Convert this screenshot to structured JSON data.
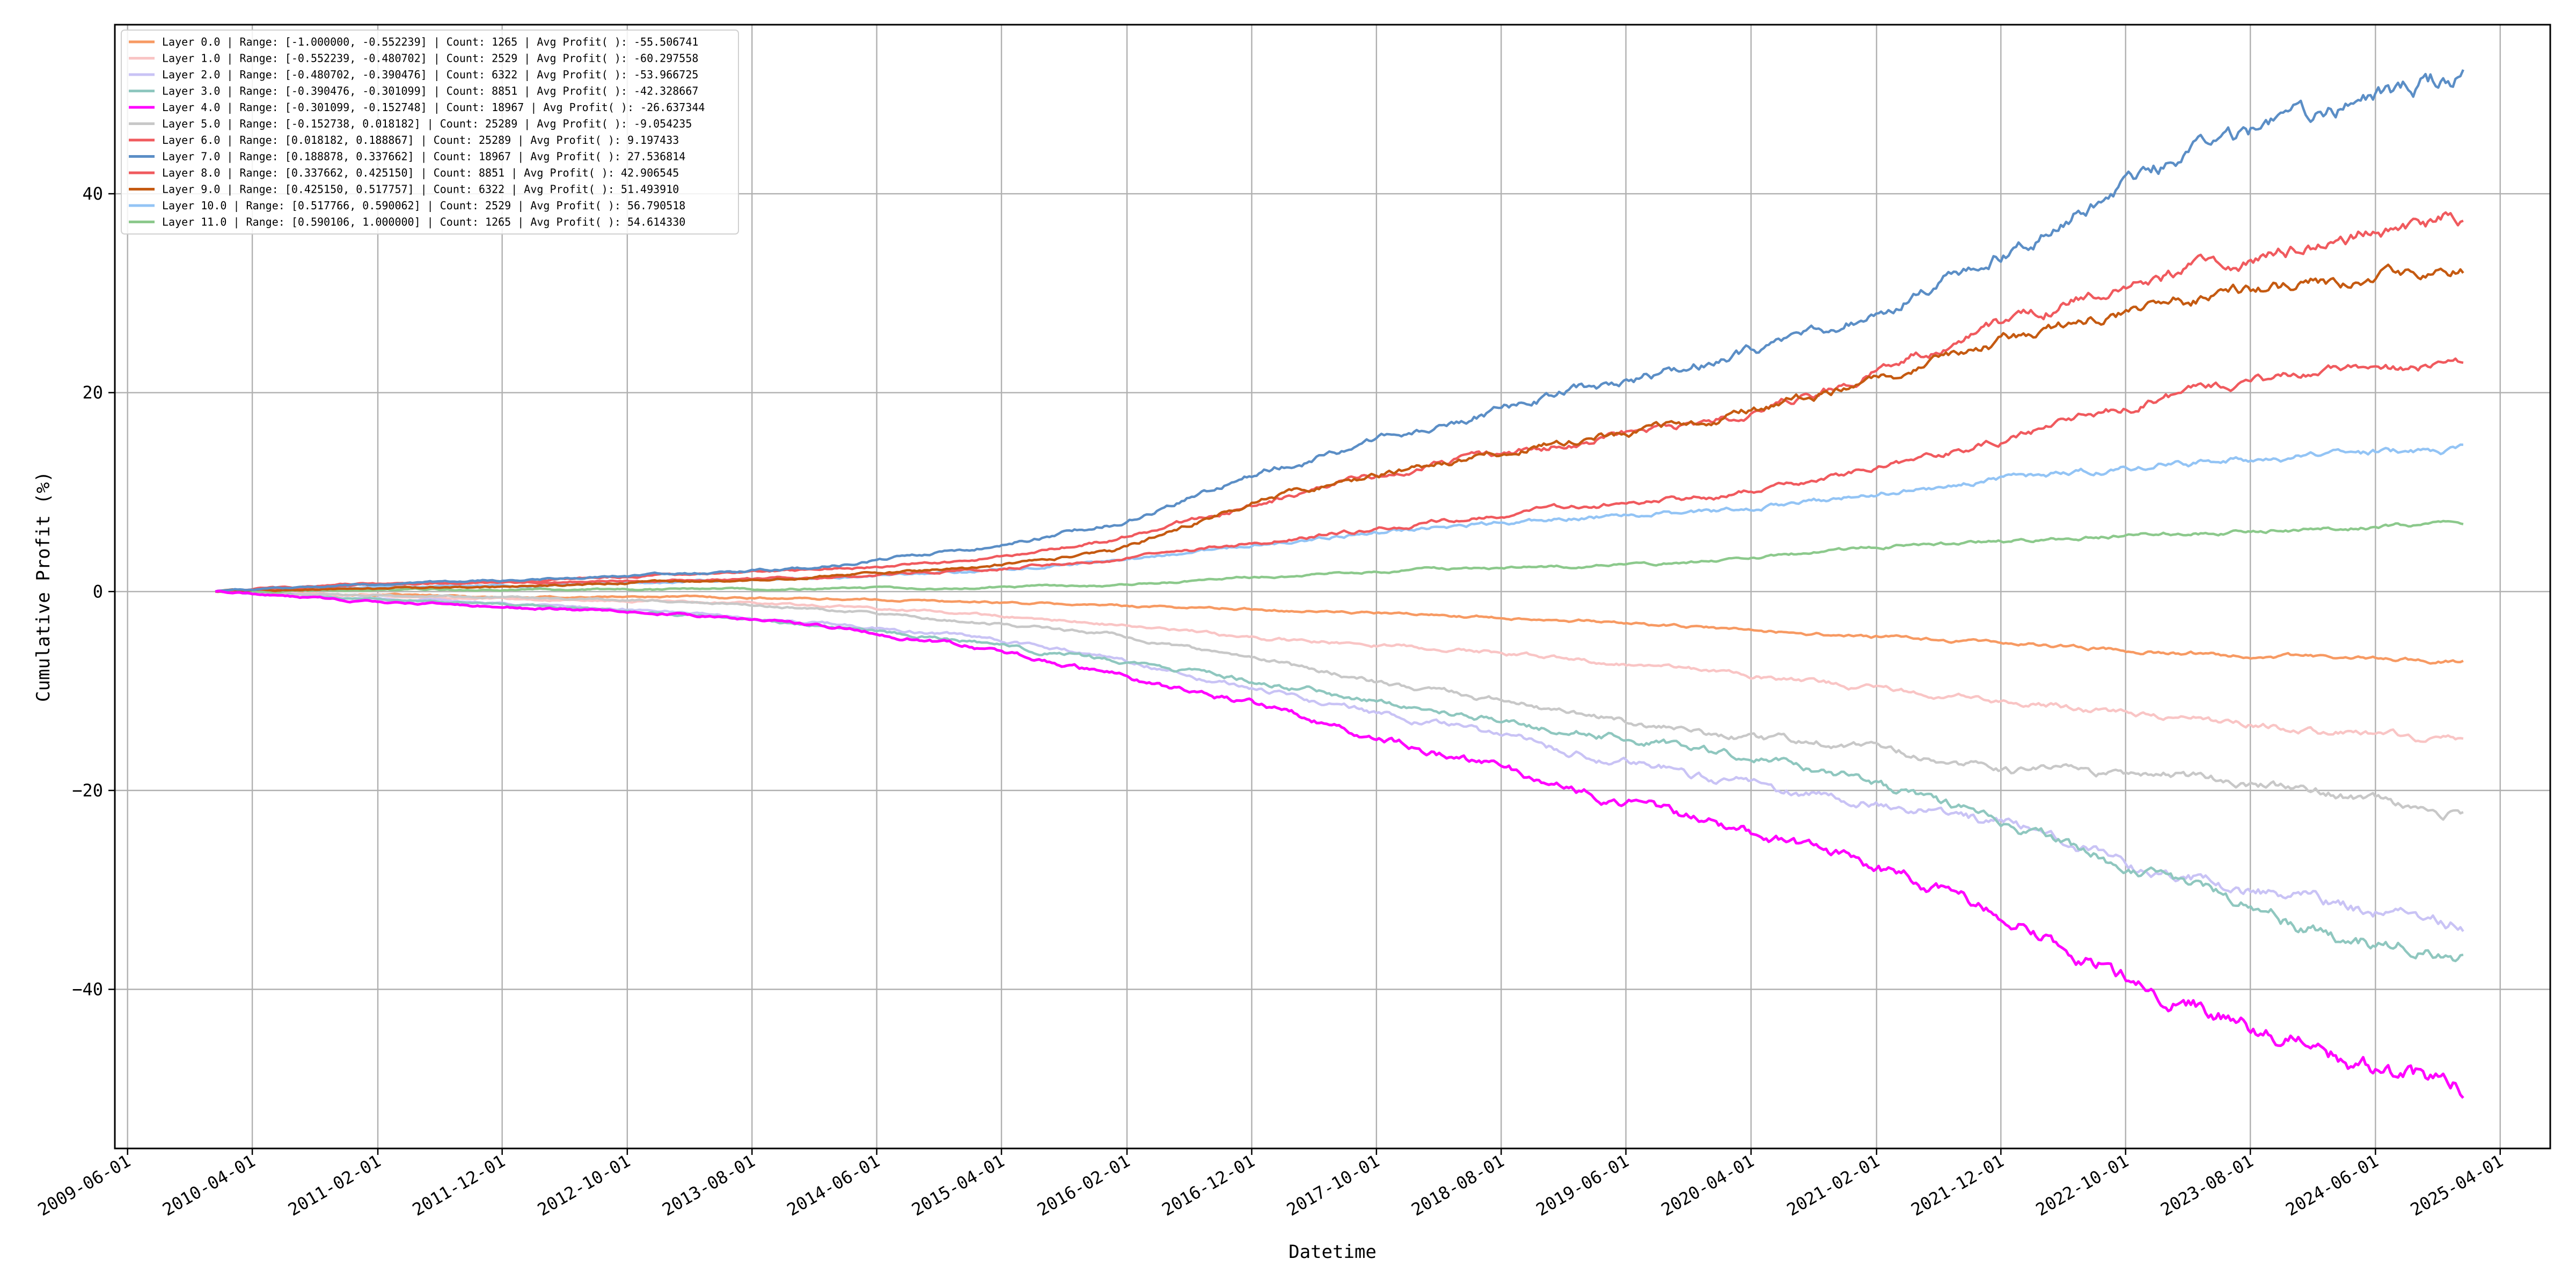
{
  "chart_data": {
    "type": "line",
    "title": "",
    "xlabel": "Datetime",
    "ylabel": "Cumulative Profit (%)",
    "x_tick_labels": [
      "2009-06-01",
      "2010-04-01",
      "2011-02-01",
      "2011-12-01",
      "2012-10-01",
      "2013-08-01",
      "2014-06-01",
      "2015-04-01",
      "2016-02-01",
      "2016-12-01",
      "2017-10-01",
      "2018-08-01",
      "2019-06-01",
      "2020-04-01",
      "2021-02-01",
      "2021-12-01",
      "2022-10-01",
      "2023-08-01",
      "2024-06-01",
      "2025-04-01"
    ],
    "y_ticks": [
      -40,
      -20,
      0,
      20,
      40
    ],
    "y_tick_labels": [
      "−40",
      "−20",
      "0",
      "20",
      "40"
    ],
    "xlim": [
      "2009-05-01",
      "2025-08-01"
    ],
    "ylim": [
      -56,
      57
    ],
    "grid": true,
    "legend_position": "top-left",
    "x": [
      "2010-01-01",
      "2011-01-01",
      "2012-01-01",
      "2013-01-01",
      "2014-01-01",
      "2015-01-01",
      "2016-01-01",
      "2017-01-01",
      "2018-01-01",
      "2019-01-01",
      "2020-01-01",
      "2021-01-01",
      "2022-01-01",
      "2023-01-01",
      "2024-01-01",
      "2025-01-01"
    ],
    "series": [
      {
        "name": "Layer 0.0 | Range: [-1.000000, -0.552239] | Count: 1265 | Avg Profit( ): -55.506741",
        "color": "#f79a63",
        "values": [
          0,
          -0.3,
          -0.6,
          -0.5,
          -0.7,
          -1.0,
          -1.4,
          -1.8,
          -2.3,
          -2.8,
          -3.7,
          -4.5,
          -5.2,
          -6.1,
          -6.6,
          -7.0
        ]
      },
      {
        "name": "Layer 1.0 | Range: [-0.552239, -0.480702] | Count: 2529 | Avg Profit( ): -60.297558",
        "color": "#f9c5c5",
        "values": [
          0,
          -0.3,
          -0.8,
          -1.0,
          -1.4,
          -2.2,
          -3.3,
          -4.8,
          -5.5,
          -6.7,
          -8.0,
          -9.6,
          -11.0,
          -12.7,
          -14.0,
          -15.0
        ]
      },
      {
        "name": "Layer 2.0 | Range: [-0.480702, -0.390476] | Count: 6322 | Avg Profit( ): -53.966725",
        "color": "#c9c3f5",
        "values": [
          0,
          -0.7,
          -1.3,
          -2.0,
          -3.1,
          -4.5,
          -6.6,
          -10.0,
          -12.8,
          -16.0,
          -18.8,
          -21.2,
          -23.5,
          -28.5,
          -31.0,
          -33.8
        ]
      },
      {
        "name": "Layer 3.0 | Range: [-0.390476, -0.301099] | Count: 8851 | Avg Profit( ): -42.328667",
        "color": "#8fc7bf",
        "values": [
          0,
          -0.7,
          -1.3,
          -2.2,
          -3.3,
          -5.0,
          -7.0,
          -9.2,
          -11.5,
          -13.9,
          -16.0,
          -19.0,
          -23.5,
          -29.0,
          -34.0,
          -37.0
        ]
      },
      {
        "name": "Layer 4.0 | Range: [-0.301099, -0.152748] | Count: 18967 | Avg Profit( ): -26.637344",
        "color": "#ff00ff",
        "values": [
          0,
          -1.0,
          -1.6,
          -2.2,
          -3.3,
          -5.4,
          -8.4,
          -11.6,
          -15.6,
          -19.5,
          -23.2,
          -27.3,
          -33.0,
          -40.5,
          -46.0,
          -50.0
        ]
      },
      {
        "name": "Layer 5.0 | Range: [-0.152738, 0.018182] | Count: 25289 | Avg Profit( ): -9.054235",
        "color": "#c8c8c8",
        "values": [
          0,
          -0.4,
          -0.6,
          -0.9,
          -1.7,
          -3.0,
          -4.3,
          -7.0,
          -9.8,
          -11.9,
          -14.5,
          -15.5,
          -18.0,
          -18.3,
          -20.0,
          -22.5
        ]
      },
      {
        "name": "Layer 6.0 | Range: [0.018182, 0.188867] | Count: 25289 | Avg Profit( ): 9.197433",
        "color": "#f05a5e",
        "values": [
          0,
          0.8,
          0.9,
          1.1,
          1.4,
          2.1,
          3.2,
          5.0,
          6.7,
          8.4,
          9.5,
          12.0,
          15.5,
          19.5,
          22.0,
          23.2
        ]
      },
      {
        "name": "Layer 7.0 | Range: [0.188878, 0.337662] | Count: 18967 | Avg Profit( ): 27.536814",
        "color": "#5b8ec6",
        "values": [
          0,
          0.7,
          1.2,
          1.7,
          2.4,
          4.2,
          6.8,
          12.0,
          16.2,
          20.0,
          23.0,
          27.5,
          34.5,
          43.0,
          48.0,
          52.0
        ]
      },
      {
        "name": "Layer 8.0 | Range: [0.337662, 0.425150] | Count: 8851 | Avg Profit( ): 42.906545",
        "color": "#f05a5e",
        "values": [
          0,
          0.7,
          1.0,
          1.7,
          2.2,
          3.0,
          5.2,
          9.0,
          12.5,
          14.8,
          17.0,
          21.5,
          27.5,
          31.5,
          35.0,
          37.8
        ]
      },
      {
        "name": "Layer 9.0 | Range: [0.425150, 0.517757] | Count: 6322 | Avg Profit( ): 51.493910",
        "color": "#c55a11",
        "values": [
          0,
          0.3,
          0.5,
          1.0,
          1.5,
          2.3,
          4.0,
          9.5,
          12.5,
          15.0,
          17.3,
          20.8,
          25.5,
          28.8,
          31.0,
          32.5
        ]
      },
      {
        "name": "Layer 10.0 | Range: [0.517766, 0.590062] | Count: 2529 | Avg Profit( ): 56.790518",
        "color": "#93c4f5",
        "values": [
          0,
          0.4,
          0.6,
          0.9,
          1.4,
          2.0,
          3.0,
          4.8,
          6.3,
          7.4,
          8.0,
          9.6,
          11.4,
          12.7,
          13.7,
          14.3
        ]
      },
      {
        "name": "Layer 11.0 | Range: [0.590106, 1.000000] | Count: 1265 | Avg Profit( ): 54.614330",
        "color": "#8cc98c",
        "values": [
          0,
          0.1,
          0.2,
          0.2,
          0.3,
          0.4,
          0.6,
          1.5,
          2.2,
          2.5,
          3.0,
          4.4,
          5.1,
          5.8,
          6.3,
          6.9
        ]
      }
    ]
  }
}
